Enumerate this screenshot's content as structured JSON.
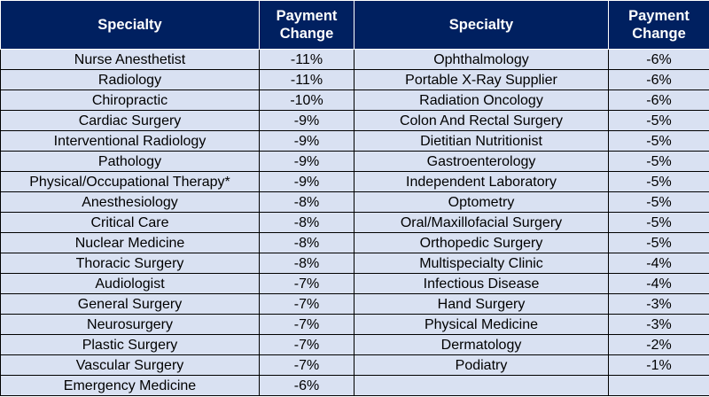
{
  "chart_data": {
    "type": "table",
    "columns": [
      "Specialty",
      "Payment Change",
      "Specialty",
      "Payment Change"
    ],
    "header": {
      "specialty": "Specialty",
      "payment_change_line1": "Payment",
      "payment_change_line2": "Change"
    },
    "rows": [
      {
        "left_specialty": "Nurse Anesthetist",
        "left_change": "-11%",
        "right_specialty": "Ophthalmology",
        "right_change": "-6%"
      },
      {
        "left_specialty": "Radiology",
        "left_change": "-11%",
        "right_specialty": "Portable X-Ray Supplier",
        "right_change": "-6%"
      },
      {
        "left_specialty": "Chiropractic",
        "left_change": "-10%",
        "right_specialty": "Radiation Oncology",
        "right_change": "-6%"
      },
      {
        "left_specialty": "Cardiac Surgery",
        "left_change": "-9%",
        "right_specialty": "Colon And Rectal Surgery",
        "right_change": "-5%"
      },
      {
        "left_specialty": "Interventional Radiology",
        "left_change": "-9%",
        "right_specialty": "Dietitian Nutritionist",
        "right_change": "-5%"
      },
      {
        "left_specialty": "Pathology",
        "left_change": "-9%",
        "right_specialty": "Gastroenterology",
        "right_change": "-5%"
      },
      {
        "left_specialty": "Physical/Occupational Therapy*",
        "left_change": "-9%",
        "right_specialty": "Independent Laboratory",
        "right_change": "-5%"
      },
      {
        "left_specialty": "Anesthesiology",
        "left_change": "-8%",
        "right_specialty": "Optometry",
        "right_change": "-5%"
      },
      {
        "left_specialty": "Critical Care",
        "left_change": "-8%",
        "right_specialty": "Oral/Maxillofacial Surgery",
        "right_change": "-5%"
      },
      {
        "left_specialty": "Nuclear Medicine",
        "left_change": "-8%",
        "right_specialty": "Orthopedic Surgery",
        "right_change": "-5%"
      },
      {
        "left_specialty": "Thoracic Surgery",
        "left_change": "-8%",
        "right_specialty": "Multispecialty Clinic",
        "right_change": "-4%"
      },
      {
        "left_specialty": "Audiologist",
        "left_change": "-7%",
        "right_specialty": "Infectious Disease",
        "right_change": "-4%"
      },
      {
        "left_specialty": "General Surgery",
        "left_change": "-7%",
        "right_specialty": "Hand Surgery",
        "right_change": "-3%"
      },
      {
        "left_specialty": "Neurosurgery",
        "left_change": "-7%",
        "right_specialty": "Physical Medicine",
        "right_change": "-3%"
      },
      {
        "left_specialty": "Plastic Surgery",
        "left_change": "-7%",
        "right_specialty": "Dermatology",
        "right_change": "-2%"
      },
      {
        "left_specialty": "Vascular Surgery",
        "left_change": "-7%",
        "right_specialty": "Podiatry",
        "right_change": "-1%"
      },
      {
        "left_specialty": "Emergency Medicine",
        "left_change": "-6%",
        "right_specialty": "",
        "right_change": ""
      }
    ]
  },
  "colors": {
    "header_background": "#002060",
    "header_text": "#ffffff",
    "cell_background": "#d9e1f2",
    "cell_border": "#000000"
  }
}
